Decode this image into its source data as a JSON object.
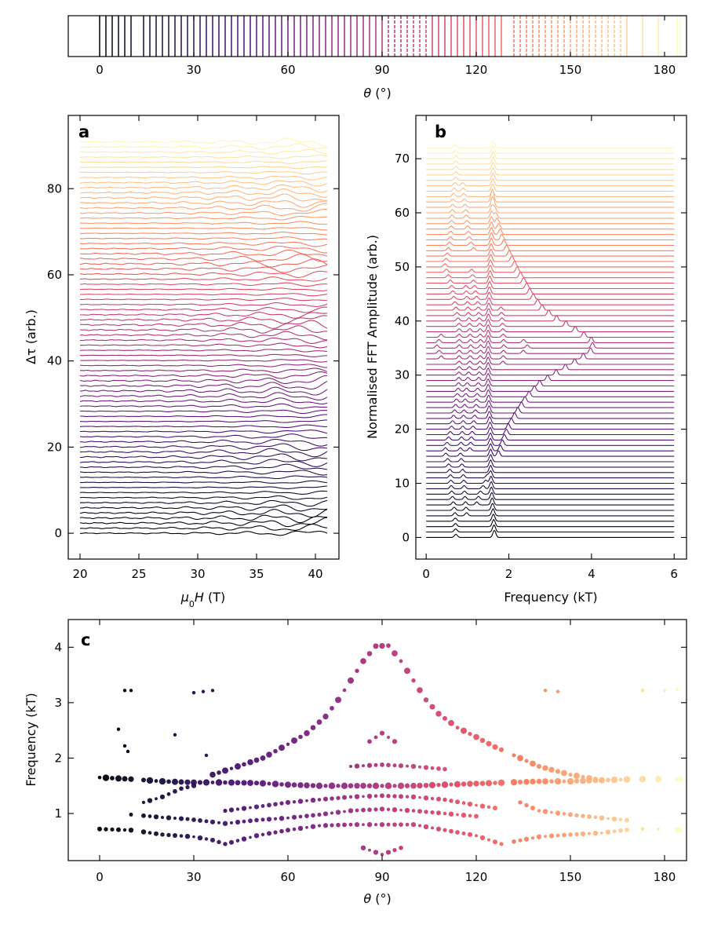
{
  "figure": {
    "panels": [
      "a",
      "b",
      "c"
    ]
  },
  "chart_data": [
    {
      "id": "colorbar",
      "type": "colorbar",
      "xlabel": "θ (°)",
      "xlim": [
        -10,
        187
      ],
      "xticks": [
        0,
        30,
        60,
        90,
        120,
        150,
        180
      ],
      "colormap": "magma",
      "line_angles": [
        0,
        2,
        4,
        6,
        8,
        10,
        14,
        16,
        18,
        20,
        22,
        24,
        26,
        28,
        30,
        32,
        34,
        36,
        38,
        40,
        42,
        44,
        46,
        48,
        50,
        52,
        54,
        56,
        58,
        60,
        62,
        64,
        66,
        68,
        70,
        72,
        74,
        76,
        78,
        80,
        82,
        84,
        86,
        88,
        90,
        92,
        94,
        96,
        98,
        100,
        102,
        104,
        106,
        108,
        110,
        112,
        114,
        116,
        118,
        120,
        122,
        124,
        126,
        128,
        132,
        134,
        136,
        138,
        140,
        142,
        144,
        146,
        148,
        150,
        152,
        154,
        156,
        158,
        160,
        162,
        164,
        166,
        168,
        173,
        178,
        184,
        185
      ],
      "dashed_ranges": [
        [
          91,
          105
        ],
        [
          132,
          167
        ]
      ]
    },
    {
      "id": "a",
      "type": "line",
      "panel_label": "a",
      "xlabel": "μ0H (T)",
      "ylabel": "Δτ (arb.)",
      "xlim": [
        19,
        42
      ],
      "ylim": [
        -6,
        97
      ],
      "xticks": [
        20,
        25,
        30,
        35,
        40
      ],
      "yticks": [
        0,
        20,
        40,
        60,
        80
      ],
      "n_traces": 78,
      "trace_spacing": 1.18,
      "x_range": [
        20,
        41
      ]
    },
    {
      "id": "b",
      "type": "line",
      "panel_label": "b",
      "xlabel": "Frequency (kT)",
      "ylabel": "Normalised FFT Amplitude (arb.)",
      "xlim": [
        -0.25,
        6.3
      ],
      "ylim": [
        -4,
        78
      ],
      "xticks": [
        0,
        2,
        4,
        6
      ],
      "yticks": [
        0,
        10,
        20,
        30,
        40,
        50,
        60,
        70
      ],
      "n_traces": 73,
      "trace_spacing": 1.0,
      "x_range": [
        0,
        6
      ]
    },
    {
      "id": "c",
      "type": "scatter",
      "panel_label": "c",
      "xlabel": "θ (°)",
      "ylabel": "Frequency (kT)",
      "xlim": [
        -10,
        187
      ],
      "ylim": [
        0.15,
        4.5
      ],
      "xticks": [
        0,
        30,
        60,
        90,
        120,
        150,
        180
      ],
      "yticks": [
        1,
        2,
        3,
        4
      ],
      "angles": [
        0,
        2,
        4,
        6,
        8,
        10,
        14,
        16,
        18,
        20,
        22,
        24,
        26,
        28,
        30,
        32,
        34,
        36,
        38,
        40,
        42,
        44,
        46,
        48,
        50,
        52,
        54,
        56,
        58,
        60,
        62,
        64,
        66,
        68,
        70,
        72,
        74,
        76,
        78,
        80,
        82,
        84,
        86,
        88,
        90,
        92,
        94,
        96,
        98,
        100,
        102,
        104,
        106,
        108,
        110,
        112,
        114,
        116,
        118,
        120,
        122,
        124,
        126,
        128,
        132,
        134,
        136,
        138,
        140,
        142,
        144,
        146,
        148,
        150,
        152,
        154,
        156,
        158,
        160,
        162,
        164,
        166,
        168,
        173,
        178,
        184,
        185
      ],
      "branches": [
        {
          "name": "",
          "points": [
            [
              0,
              1.65
            ],
            [
              10,
              1.62
            ],
            [
              20,
              1.58
            ],
            [
              30,
              1.56
            ],
            [
              40,
              1.56
            ],
            [
              50,
              1.55
            ],
            [
              60,
              1.52
            ],
            [
              70,
              1.5
            ],
            [
              80,
              1.5
            ],
            [
              90,
              1.5
            ],
            [
              100,
              1.5
            ],
            [
              110,
              1.52
            ],
            [
              120,
              1.54
            ],
            [
              130,
              1.56
            ],
            [
              140,
              1.58
            ],
            [
              150,
              1.58
            ],
            [
              160,
              1.6
            ],
            [
              170,
              1.62
            ],
            [
              180,
              1.62
            ],
            [
              185,
              1.62
            ]
          ]
        },
        {
          "name": "",
          "points": [
            [
              0,
              0.72
            ],
            [
              10,
              0.7
            ],
            [
              20,
              0.62
            ],
            [
              30,
              0.58
            ],
            [
              36,
              0.52
            ],
            [
              40,
              0.45
            ],
            [
              50,
              0.6
            ],
            [
              60,
              0.7
            ],
            [
              70,
              0.78
            ],
            [
              80,
              0.8
            ],
            [
              90,
              0.8
            ],
            [
              100,
              0.8
            ],
            [
              110,
              0.7
            ],
            [
              120,
              0.6
            ],
            [
              128,
              0.45
            ],
            [
              140,
              0.58
            ],
            [
              150,
              0.62
            ],
            [
              160,
              0.65
            ],
            [
              170,
              0.72
            ],
            [
              180,
              0.72
            ],
            [
              185,
              0.7
            ]
          ]
        },
        {
          "name": "",
          "points": [
            [
              36,
              1.7
            ],
            [
              44,
              1.85
            ],
            [
              52,
              2.0
            ],
            [
              60,
              2.25
            ],
            [
              66,
              2.45
            ],
            [
              72,
              2.75
            ],
            [
              76,
              3.05
            ],
            [
              80,
              3.4
            ],
            [
              84,
              3.75
            ],
            [
              88,
              4.02
            ],
            [
              92,
              4.03
            ],
            [
              96,
              3.75
            ],
            [
              100,
              3.4
            ],
            [
              104,
              3.05
            ],
            [
              108,
              2.8
            ],
            [
              114,
              2.55
            ],
            [
              120,
              2.38
            ],
            [
              126,
              2.2
            ],
            [
              132,
              2.05
            ],
            [
              140,
              1.85
            ],
            [
              150,
              1.7
            ],
            [
              160,
              1.6
            ]
          ]
        },
        {
          "name": "",
          "points": [
            [
              14,
              1.2
            ],
            [
              20,
              1.3
            ],
            [
              26,
              1.45
            ],
            [
              30,
              1.5
            ]
          ]
        },
        {
          "name": "",
          "points": [
            [
              40,
              1.05
            ],
            [
              50,
              1.12
            ],
            [
              60,
              1.2
            ],
            [
              70,
              1.25
            ],
            [
              80,
              1.3
            ],
            [
              90,
              1.32
            ],
            [
              100,
              1.3
            ],
            [
              110,
              1.25
            ],
            [
              120,
              1.15
            ],
            [
              126,
              1.1
            ]
          ]
        },
        {
          "name": "",
          "points": [
            [
              10,
              0.98
            ],
            [
              20,
              0.93
            ],
            [
              28,
              0.9
            ],
            [
              40,
              0.82
            ],
            [
              50,
              0.88
            ],
            [
              60,
              0.92
            ],
            [
              70,
              0.98
            ],
            [
              80,
              1.05
            ],
            [
              90,
              1.08
            ],
            [
              100,
              1.05
            ],
            [
              110,
              1.0
            ],
            [
              120,
              0.95
            ]
          ]
        },
        {
          "name": "",
          "points": [
            [
              134,
              1.2
            ],
            [
              140,
              1.05
            ],
            [
              150,
              0.98
            ],
            [
              160,
              0.92
            ],
            [
              168,
              0.88
            ]
          ]
        },
        {
          "name": "",
          "points": [
            [
              80,
              1.85
            ],
            [
              90,
              1.88
            ],
            [
              100,
              1.85
            ],
            [
              110,
              1.8
            ]
          ]
        },
        {
          "name": "",
          "points": [
            [
              86,
              2.3
            ],
            [
              90,
              2.45
            ],
            [
              94,
              2.3
            ]
          ]
        },
        {
          "name": "",
          "points": [
            [
              84,
              0.38
            ],
            [
              88,
              0.3
            ],
            [
              90,
              0.26
            ],
            [
              92,
              0.3
            ],
            [
              96,
              0.38
            ]
          ]
        },
        {
          "name": "",
          "points": [
            [
              8,
              3.22
            ],
            [
              10,
              3.22
            ],
            [
              30,
              3.18
            ],
            [
              33,
              3.2
            ],
            [
              36,
              3.22
            ],
            [
              142,
              3.22
            ],
            [
              146,
              3.2
            ],
            [
              173,
              3.22
            ],
            [
              180,
              3.22
            ],
            [
              184,
              3.24
            ],
            [
              6,
              2.52
            ],
            [
              24,
              2.42
            ],
            [
              8,
              2.22
            ],
            [
              9,
              2.12
            ],
            [
              34,
              2.05
            ]
          ]
        }
      ]
    }
  ]
}
